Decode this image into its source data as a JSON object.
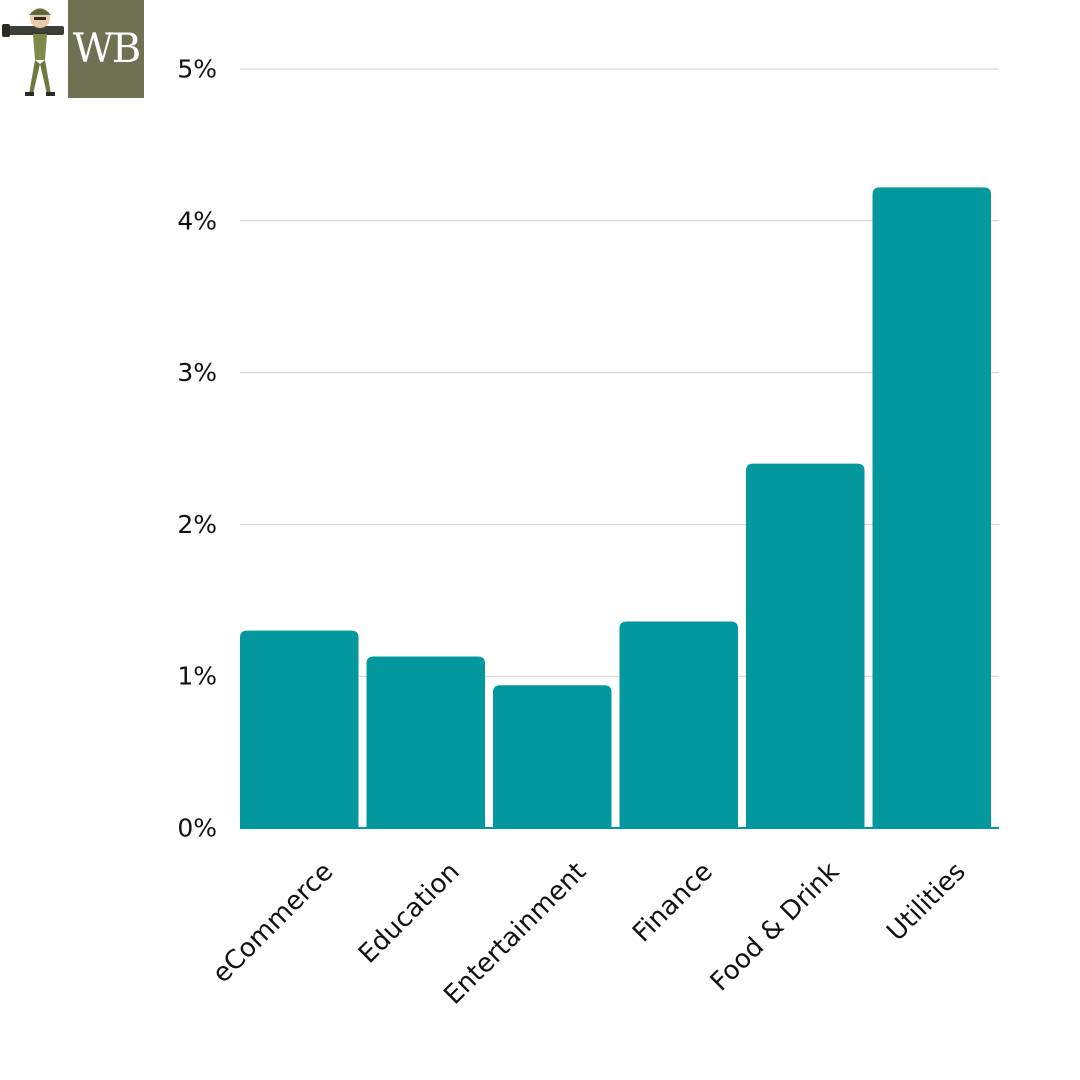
{
  "logo": {
    "text": "WB",
    "bg_color": "#6e7152",
    "figure_icon": "soldier-with-bazooka-icon"
  },
  "chart_data": {
    "type": "bar",
    "title": "",
    "xlabel": "",
    "ylabel": "",
    "categories": [
      "eCommerce",
      "Education",
      "Entertainment",
      "Finance",
      "Food & Drink",
      "Utilities"
    ],
    "values": [
      1.3,
      1.13,
      0.94,
      1.36,
      2.4,
      4.22
    ],
    "ylim": [
      0,
      5
    ],
    "yticks": [
      0,
      1,
      2,
      3,
      4,
      5
    ],
    "ytick_labels": [
      "0%",
      "1%",
      "2%",
      "3%",
      "4%",
      "5%"
    ],
    "grid": true,
    "legend": "none",
    "bar_color": "#03989e",
    "gridline_color": "#d0d0d0"
  }
}
